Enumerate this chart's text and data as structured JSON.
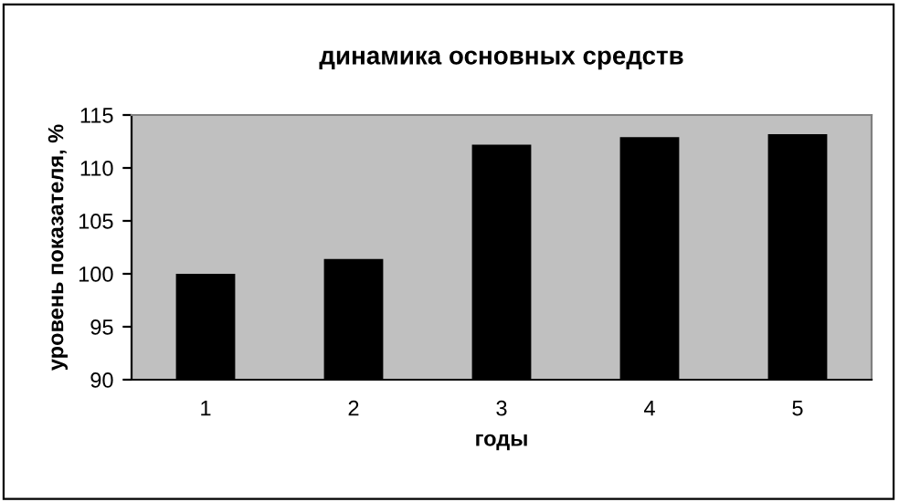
{
  "chart_data": {
    "type": "bar",
    "title": "динамика основных средств",
    "xlabel": "годы",
    "ylabel": "уровень показателя, %",
    "categories": [
      "1",
      "2",
      "3",
      "4",
      "5"
    ],
    "values": [
      100,
      101.4,
      112.2,
      112.9,
      113.2
    ],
    "color": "#000000",
    "ylim": [
      90,
      115
    ],
    "yticks": [
      90,
      95,
      100,
      105,
      110,
      115
    ],
    "grid": false,
    "legend": false
  }
}
